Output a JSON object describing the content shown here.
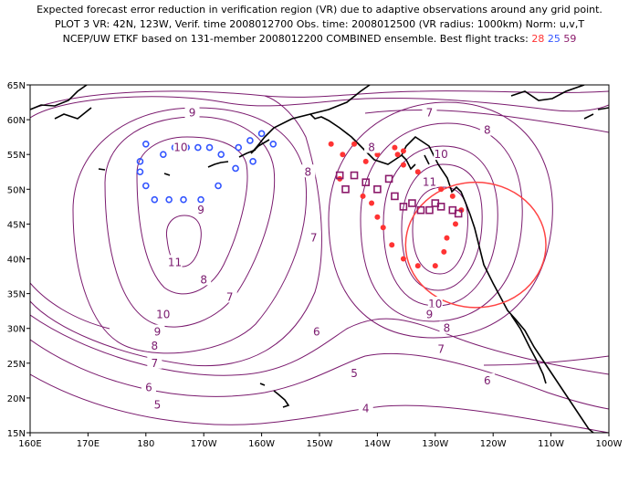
{
  "header": {
    "line1": "Expected forecast error reduction in verification region (VR) due to adaptive observations around any grid point.",
    "line2": "PLOT 3 VR: 42N, 123W, Verif. time 2008012700 Obs. time: 2008012500 (VR radius: 1000km) Norm: u,v,T",
    "line3_prefix": "NCEP/UW ETKF based on 131-member 2008012200 COMBINED ensemble.  Best flight tracks:",
    "tracks": [
      {
        "id": "28",
        "color": "#ff3333"
      },
      {
        "id": "25",
        "color": "#3355ff"
      },
      {
        "id": "59",
        "color": "#8b1a6b"
      }
    ]
  },
  "axes": {
    "lat_labels": [
      "65N",
      "60N",
      "55N",
      "50N",
      "45N",
      "40N",
      "35N",
      "30N",
      "25N",
      "20N",
      "15N"
    ],
    "lon_labels": [
      "160E",
      "170E",
      "180",
      "170W",
      "160W",
      "150W",
      "140W",
      "130W",
      "120W",
      "110W",
      "100W"
    ]
  },
  "contour_labels": [
    {
      "text": "9",
      "lon": -172,
      "lat": 61
    },
    {
      "text": "7",
      "lon": -131,
      "lat": 61
    },
    {
      "text": "8",
      "lon": -121,
      "lat": 58.5
    },
    {
      "text": "10",
      "lon": -174,
      "lat": 56
    },
    {
      "text": "8",
      "lon": -141,
      "lat": 56
    },
    {
      "text": "10",
      "lon": -129,
      "lat": 55
    },
    {
      "text": "8",
      "lon": -152,
      "lat": 52.5
    },
    {
      "text": "11",
      "lon": -131,
      "lat": 51
    },
    {
      "text": "9",
      "lon": -170.5,
      "lat": 47
    },
    {
      "text": "7",
      "lon": -151,
      "lat": 43
    },
    {
      "text": "11",
      "lon": -175,
      "lat": 39.5
    },
    {
      "text": "8",
      "lon": -170,
      "lat": 37
    },
    {
      "text": "7",
      "lon": -165.5,
      "lat": 34.5
    },
    {
      "text": "10",
      "lon": -177,
      "lat": 32
    },
    {
      "text": "10",
      "lon": -130,
      "lat": 33.5
    },
    {
      "text": "9",
      "lon": -131,
      "lat": 32
    },
    {
      "text": "9",
      "lon": -178,
      "lat": 29.5
    },
    {
      "text": "8",
      "lon": -128,
      "lat": 30
    },
    {
      "text": "6",
      "lon": -150.5,
      "lat": 29.5
    },
    {
      "text": "8",
      "lon": -178.5,
      "lat": 27.5
    },
    {
      "text": "7",
      "lon": -129,
      "lat": 27
    },
    {
      "text": "7",
      "lon": -178.5,
      "lat": 25
    },
    {
      "text": "5",
      "lon": -144,
      "lat": 23.5
    },
    {
      "text": "6",
      "lon": -179.5,
      "lat": 21.5
    },
    {
      "text": "6",
      "lon": -121,
      "lat": 22.5
    },
    {
      "text": "5",
      "lon": -178,
      "lat": 19
    },
    {
      "text": "4",
      "lon": -142,
      "lat": 18.5
    }
  ],
  "flight_tracks": {
    "track28": [
      [
        -148,
        56.5
      ],
      [
        -146,
        55
      ],
      [
        -144,
        56.5
      ],
      [
        -142,
        54
      ],
      [
        -140,
        55
      ],
      [
        -137,
        56
      ],
      [
        -136.5,
        55
      ],
      [
        -135.5,
        55.5
      ],
      [
        -146.5,
        51.5
      ],
      [
        -142.5,
        49
      ],
      [
        -141,
        48
      ],
      [
        -140,
        46
      ],
      [
        -139,
        44.5
      ],
      [
        -137.5,
        42
      ],
      [
        -135.5,
        40
      ],
      [
        -133,
        39
      ],
      [
        -130,
        39
      ],
      [
        -128.5,
        41
      ],
      [
        -128,
        43
      ],
      [
        -126.5,
        45
      ],
      [
        -125.5,
        47
      ],
      [
        -127,
        49
      ],
      [
        -129,
        50
      ],
      [
        -131,
        51
      ],
      [
        -133,
        52.5
      ],
      [
        -135.5,
        53.5
      ]
    ],
    "track25": [
      [
        -177,
        55
      ],
      [
        -175,
        56
      ],
      [
        -173,
        56
      ],
      [
        -171,
        56
      ],
      [
        -169,
        56
      ],
      [
        -167,
        55
      ],
      [
        -164,
        56
      ],
      [
        -162,
        57
      ],
      [
        -160,
        58
      ],
      [
        -158,
        56.5
      ],
      [
        -161.5,
        54
      ],
      [
        -164.5,
        53
      ],
      [
        -167.5,
        50.5
      ],
      [
        -170.5,
        48.5
      ],
      [
        -173.5,
        48.5
      ],
      [
        -176,
        48.5
      ],
      [
        -178.5,
        48.5
      ],
      [
        -180,
        50.5
      ],
      [
        -181,
        52.5
      ],
      [
        -181,
        54
      ],
      [
        -180,
        56.5
      ]
    ],
    "track59": [
      [
        -146.5,
        52
      ],
      [
        -145.5,
        50
      ],
      [
        -144,
        52
      ],
      [
        -142,
        51
      ],
      [
        -140,
        50
      ],
      [
        -138,
        51.5
      ],
      [
        -137,
        49
      ],
      [
        -135.5,
        47.5
      ],
      [
        -134,
        48
      ],
      [
        -132.5,
        47
      ],
      [
        -131,
        47
      ],
      [
        -130,
        48
      ],
      [
        -129,
        47.5
      ],
      [
        -127,
        47
      ],
      [
        -126,
        46.5
      ]
    ]
  },
  "verification_circle": {
    "lon": -123,
    "lat": 42,
    "radius_km": 1000,
    "color": "#ff4444"
  },
  "contour_color": "#7a1a6e"
}
